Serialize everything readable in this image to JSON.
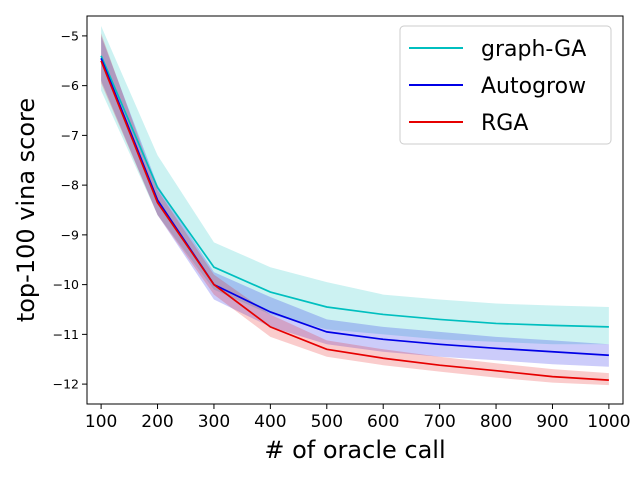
{
  "chart_data": {
    "type": "line",
    "xlabel": "# of oracle call",
    "ylabel": "top-100 vina score",
    "xlim": [
      75,
      1025
    ],
    "ylim": [
      -12.4,
      -4.6
    ],
    "x_ticks": [
      100,
      200,
      300,
      400,
      500,
      600,
      700,
      800,
      900,
      1000
    ],
    "y_ticks": [
      -5,
      -6,
      -7,
      -8,
      -9,
      -10,
      -11,
      -12
    ],
    "grid": false,
    "legend_position": "top-right",
    "x": [
      100,
      200,
      300,
      400,
      500,
      600,
      700,
      800,
      900,
      1000
    ],
    "series": [
      {
        "name": "graph-GA",
        "color": "#00bfbf",
        "values": [
          -5.4,
          -8.05,
          -9.65,
          -10.15,
          -10.45,
          -10.6,
          -10.7,
          -10.78,
          -10.82,
          -10.85
        ],
        "lower": [
          -6.1,
          -8.6,
          -10.1,
          -10.6,
          -10.9,
          -11.0,
          -11.1,
          -11.15,
          -11.2,
          -11.2
        ],
        "upper": [
          -4.8,
          -7.4,
          -9.15,
          -9.65,
          -9.95,
          -10.2,
          -10.3,
          -10.38,
          -10.42,
          -10.45
        ]
      },
      {
        "name": "Autogrow",
        "color": "#0000e6",
        "values": [
          -5.45,
          -8.3,
          -10.0,
          -10.55,
          -10.95,
          -11.1,
          -11.2,
          -11.28,
          -11.35,
          -11.42
        ],
        "lower": [
          -5.9,
          -8.6,
          -10.3,
          -10.85,
          -11.2,
          -11.35,
          -11.45,
          -11.52,
          -11.6,
          -11.65
        ],
        "upper": [
          -5.0,
          -8.0,
          -9.75,
          -10.25,
          -10.7,
          -10.85,
          -10.95,
          -11.05,
          -11.12,
          -11.2
        ]
      },
      {
        "name": "RGA",
        "color": "#e60000",
        "values": [
          -5.5,
          -8.35,
          -10.0,
          -10.85,
          -11.3,
          -11.48,
          -11.62,
          -11.73,
          -11.85,
          -11.92
        ],
        "lower": [
          -5.95,
          -8.6,
          -10.2,
          -11.05,
          -11.45,
          -11.62,
          -11.75,
          -11.87,
          -11.97,
          -12.02
        ],
        "upper": [
          -4.95,
          -8.1,
          -9.8,
          -10.6,
          -11.12,
          -11.3,
          -11.45,
          -11.58,
          -11.7,
          -11.78
        ]
      }
    ]
  }
}
